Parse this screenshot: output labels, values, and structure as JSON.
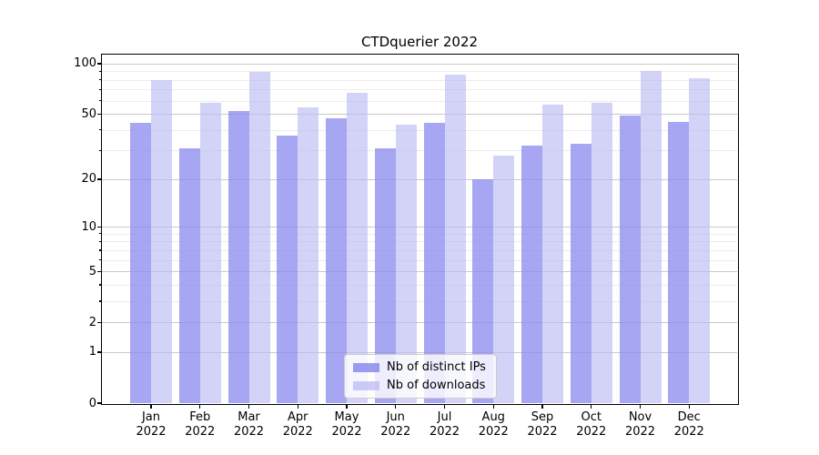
{
  "title": "CTDquerier 2022",
  "chart_data": {
    "type": "bar",
    "title": "CTDquerier 2022",
    "categories": [
      "Jan",
      "Feb",
      "Mar",
      "Apr",
      "May",
      "Jun",
      "Jul",
      "Aug",
      "Sep",
      "Oct",
      "Nov",
      "Dec"
    ],
    "year_label": "2022",
    "series": [
      {
        "name": "Nb of distinct IPs",
        "color": "#8d8dee",
        "alpha": 0.78,
        "values": [
          44,
          31,
          52,
          37,
          47,
          31,
          44,
          20,
          32,
          33,
          49,
          45
        ]
      },
      {
        "name": "Nb of downloads",
        "color": "#babaf3",
        "alpha": 0.64,
        "values": [
          80,
          58,
          89,
          55,
          67,
          43,
          86,
          28,
          57,
          58,
          91,
          82
        ]
      }
    ],
    "yscale": "log1p",
    "ylim": [
      0,
      100
    ],
    "y_ticks": [
      0,
      1,
      2,
      5,
      10,
      20,
      50,
      100
    ],
    "y_minor_ticks": [
      3,
      4,
      6,
      7,
      8,
      9,
      30,
      40,
      60,
      70,
      80,
      90
    ],
    "xlabel": "",
    "ylabel": "",
    "grid": true,
    "legend_position": "lower center"
  }
}
